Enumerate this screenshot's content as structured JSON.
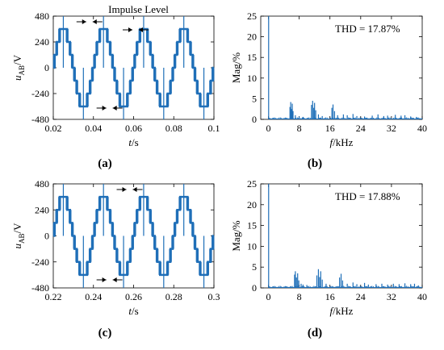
{
  "colors": {
    "wave": "#1f6fb8",
    "axis": "#000000",
    "background": "#ffffff"
  },
  "panels": [
    {
      "label": "(a)",
      "chart_data": {
        "type": "line",
        "title": "",
        "xlabel_main": "t",
        "xlabel_unit": "/s",
        "ylabel_main": "u",
        "ylabel_sub": "AB",
        "ylabel_unit": "/V",
        "xlim": [
          0.02,
          0.1
        ],
        "ylim": [
          -480,
          480
        ],
        "xticks": [
          0.02,
          0.04,
          0.06,
          0.08,
          0.1
        ],
        "xtick_labels": [
          "0.02",
          "0.04",
          "0.06",
          "0.08",
          "0.1"
        ],
        "yticks": [
          -480,
          -240,
          0,
          240,
          480
        ],
        "ytick_labels": [
          "-480",
          "-240",
          "0",
          "240",
          "480"
        ],
        "grid": false,
        "fundamental_hz": 50,
        "step_levels": [
          -360,
          -240,
          -120,
          0,
          120,
          240,
          360
        ],
        "spike_peak": 480,
        "annotation": "Impulse Level"
      }
    },
    {
      "label": "(b)",
      "chart_data": {
        "type": "bar",
        "title": "",
        "thd_text": "THD = 17.87%",
        "xlabel_main": "f",
        "xlabel_unit": "/kHz",
        "ylabel": "Mag/%",
        "xlim": [
          -2,
          40
        ],
        "ylim": [
          0,
          25
        ],
        "xticks": [
          0,
          8,
          16,
          24,
          32,
          40
        ],
        "xtick_labels": [
          "0",
          "8",
          "16",
          "24",
          "32",
          "40"
        ],
        "yticks": [
          0,
          5,
          10,
          15,
          20,
          25
        ],
        "ytick_labels": [
          "0",
          "5",
          "10",
          "15",
          "20",
          "25"
        ],
        "grid": false,
        "spectrum": [
          {
            "f": 0.05,
            "mag": 25
          },
          {
            "f": 5.6,
            "mag": 3.0
          },
          {
            "f": 5.8,
            "mag": 4.2
          },
          {
            "f": 6.0,
            "mag": 2.5
          },
          {
            "f": 6.2,
            "mag": 3.8
          },
          {
            "f": 6.4,
            "mag": 2.0
          },
          {
            "f": 7.0,
            "mag": 1.0
          },
          {
            "f": 8.0,
            "mag": 0.7
          },
          {
            "f": 9.0,
            "mag": 0.6
          },
          {
            "f": 11.2,
            "mag": 3.5
          },
          {
            "f": 11.5,
            "mag": 4.5
          },
          {
            "f": 11.8,
            "mag": 2.8
          },
          {
            "f": 12.0,
            "mag": 4.0
          },
          {
            "f": 12.3,
            "mag": 2.2
          },
          {
            "f": 13.0,
            "mag": 1.2
          },
          {
            "f": 14.0,
            "mag": 0.8
          },
          {
            "f": 16.5,
            "mag": 2.8
          },
          {
            "f": 16.8,
            "mag": 3.6
          },
          {
            "f": 17.2,
            "mag": 2.0
          },
          {
            "f": 18.0,
            "mag": 1.0
          },
          {
            "f": 19.5,
            "mag": 1.2
          },
          {
            "f": 20.5,
            "mag": 1.0
          },
          {
            "f": 22.0,
            "mag": 1.3
          },
          {
            "f": 23.0,
            "mag": 0.8
          },
          {
            "f": 25.0,
            "mag": 0.7
          },
          {
            "f": 27.0,
            "mag": 0.9
          },
          {
            "f": 28.5,
            "mag": 1.2
          },
          {
            "f": 30.0,
            "mag": 0.8
          },
          {
            "f": 31.0,
            "mag": 0.9
          },
          {
            "f": 33.0,
            "mag": 1.1
          },
          {
            "f": 34.5,
            "mag": 0.9
          },
          {
            "f": 35.5,
            "mag": 1.0
          },
          {
            "f": 37.0,
            "mag": 0.7
          },
          {
            "f": 38.5,
            "mag": 0.6
          }
        ]
      }
    },
    {
      "label": "(c)",
      "chart_data": {
        "type": "line",
        "title": "",
        "xlabel_main": "t",
        "xlabel_unit": "/s",
        "ylabel_main": "u",
        "ylabel_sub": "AB",
        "ylabel_unit": "/V",
        "xlim": [
          0.22,
          0.3
        ],
        "ylim": [
          -480,
          480
        ],
        "xticks": [
          0.22,
          0.24,
          0.26,
          0.28,
          0.3
        ],
        "xtick_labels": [
          "0.22",
          "0.24",
          "0.26",
          "0.28",
          "0.3"
        ],
        "yticks": [
          -480,
          -240,
          0,
          240,
          480
        ],
        "ytick_labels": [
          "-480",
          "-240",
          "0",
          "240",
          "480"
        ],
        "grid": false,
        "fundamental_hz": 50,
        "step_levels": [
          -360,
          -240,
          -120,
          0,
          120,
          240,
          360
        ],
        "spike_peak": 480,
        "annotation": ""
      }
    },
    {
      "label": "(d)",
      "chart_data": {
        "type": "bar",
        "title": "",
        "thd_text": "THD = 17.88%",
        "xlabel_main": "f",
        "xlabel_unit": "/kHz",
        "ylabel": "Mag/%",
        "xlim": [
          -2,
          40
        ],
        "ylim": [
          0,
          25
        ],
        "xticks": [
          0,
          8,
          16,
          24,
          32,
          40
        ],
        "xtick_labels": [
          "0",
          "8",
          "16",
          "24",
          "32",
          "40"
        ],
        "yticks": [
          0,
          5,
          10,
          15,
          20,
          25
        ],
        "ytick_labels": [
          "0",
          "5",
          "10",
          "15",
          "20",
          "25"
        ],
        "grid": false,
        "spectrum": [
          {
            "f": 0.05,
            "mag": 25
          },
          {
            "f": 6.8,
            "mag": 3.2
          },
          {
            "f": 7.0,
            "mag": 4.0
          },
          {
            "f": 7.3,
            "mag": 2.5
          },
          {
            "f": 7.6,
            "mag": 3.5
          },
          {
            "f": 7.9,
            "mag": 1.8
          },
          {
            "f": 8.5,
            "mag": 1.0
          },
          {
            "f": 9.0,
            "mag": 0.8
          },
          {
            "f": 10.0,
            "mag": 0.7
          },
          {
            "f": 12.6,
            "mag": 3.0
          },
          {
            "f": 13.0,
            "mag": 4.5
          },
          {
            "f": 13.3,
            "mag": 2.6
          },
          {
            "f": 13.6,
            "mag": 4.0
          },
          {
            "f": 14.0,
            "mag": 2.0
          },
          {
            "f": 15.0,
            "mag": 1.0
          },
          {
            "f": 18.5,
            "mag": 2.5
          },
          {
            "f": 18.9,
            "mag": 3.4
          },
          {
            "f": 19.3,
            "mag": 1.8
          },
          {
            "f": 20.5,
            "mag": 1.0
          },
          {
            "f": 22.0,
            "mag": 1.3
          },
          {
            "f": 23.0,
            "mag": 0.9
          },
          {
            "f": 25.0,
            "mag": 1.2
          },
          {
            "f": 26.0,
            "mag": 0.8
          },
          {
            "f": 28.0,
            "mag": 0.9
          },
          {
            "f": 29.5,
            "mag": 1.0
          },
          {
            "f": 31.0,
            "mag": 0.8
          },
          {
            "f": 32.5,
            "mag": 1.0
          },
          {
            "f": 34.0,
            "mag": 0.9
          },
          {
            "f": 35.5,
            "mag": 1.1
          },
          {
            "f": 37.0,
            "mag": 0.9
          },
          {
            "f": 38.0,
            "mag": 1.0
          },
          {
            "f": 39.0,
            "mag": 0.6
          }
        ]
      }
    }
  ]
}
